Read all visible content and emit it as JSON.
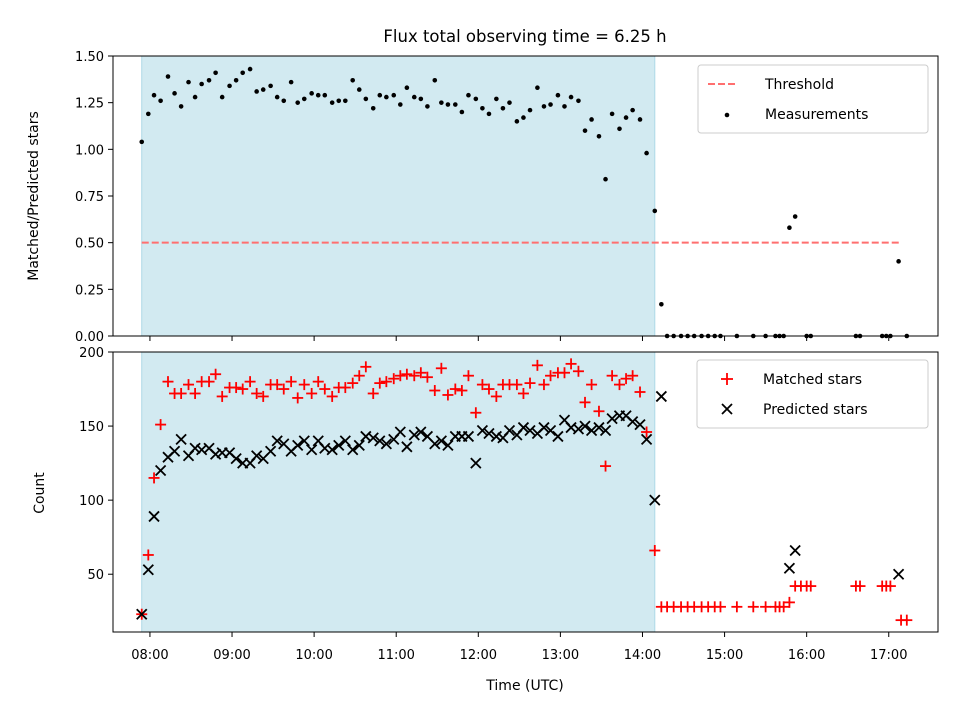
{
  "chart_data": {
    "type": "scatter",
    "title": "Flux total observing time = 6.25 h",
    "xlabel": "Time (UTC)",
    "x_ticks": [
      "08:00",
      "09:00",
      "10:00",
      "11:00",
      "12:00",
      "13:00",
      "14:00",
      "15:00",
      "16:00",
      "17:00"
    ],
    "x_range_hours": [
      7.55,
      17.6
    ],
    "observing_window_hours": [
      7.9,
      14.15
    ],
    "colors": {
      "window": "#add8e6",
      "threshold": "#ff6f6f",
      "matched": "#ff0000",
      "predicted": "#000000"
    },
    "top": {
      "ylabel": "Matched/Predicted stars",
      "ylim": [
        0,
        1.5
      ],
      "yticks": [
        "0.00",
        "0.25",
        "0.50",
        "0.75",
        "1.00",
        "1.25",
        "1.50"
      ],
      "threshold": 0.5,
      "legend": [
        "Threshold",
        "Measurements"
      ],
      "legend_loc": "upper right",
      "measurements": [
        [
          7.9,
          1.04
        ],
        [
          7.98,
          1.19
        ],
        [
          8.05,
          1.29
        ],
        [
          8.13,
          1.26
        ],
        [
          8.22,
          1.39
        ],
        [
          8.3,
          1.3
        ],
        [
          8.38,
          1.23
        ],
        [
          8.47,
          1.36
        ],
        [
          8.55,
          1.28
        ],
        [
          8.63,
          1.35
        ],
        [
          8.72,
          1.37
        ],
        [
          8.8,
          1.41
        ],
        [
          8.88,
          1.28
        ],
        [
          8.97,
          1.34
        ],
        [
          9.05,
          1.37
        ],
        [
          9.13,
          1.41
        ],
        [
          9.22,
          1.43
        ],
        [
          9.3,
          1.31
        ],
        [
          9.38,
          1.32
        ],
        [
          9.47,
          1.34
        ],
        [
          9.55,
          1.28
        ],
        [
          9.63,
          1.26
        ],
        [
          9.72,
          1.36
        ],
        [
          9.8,
          1.25
        ],
        [
          9.88,
          1.27
        ],
        [
          9.97,
          1.3
        ],
        [
          10.05,
          1.29
        ],
        [
          10.13,
          1.29
        ],
        [
          10.22,
          1.25
        ],
        [
          10.3,
          1.26
        ],
        [
          10.38,
          1.26
        ],
        [
          10.47,
          1.37
        ],
        [
          10.55,
          1.32
        ],
        [
          10.63,
          1.27
        ],
        [
          10.72,
          1.22
        ],
        [
          10.8,
          1.29
        ],
        [
          10.88,
          1.28
        ],
        [
          10.97,
          1.29
        ],
        [
          11.05,
          1.24
        ],
        [
          11.13,
          1.33
        ],
        [
          11.22,
          1.28
        ],
        [
          11.3,
          1.27
        ],
        [
          11.38,
          1.23
        ],
        [
          11.47,
          1.37
        ],
        [
          11.55,
          1.25
        ],
        [
          11.63,
          1.24
        ],
        [
          11.72,
          1.24
        ],
        [
          11.8,
          1.2
        ],
        [
          11.88,
          1.29
        ],
        [
          11.97,
          1.27
        ],
        [
          12.05,
          1.22
        ],
        [
          12.13,
          1.19
        ],
        [
          12.22,
          1.27
        ],
        [
          12.3,
          1.22
        ],
        [
          12.38,
          1.25
        ],
        [
          12.47,
          1.15
        ],
        [
          12.55,
          1.17
        ],
        [
          12.63,
          1.21
        ],
        [
          12.72,
          1.33
        ],
        [
          12.8,
          1.23
        ],
        [
          12.88,
          1.24
        ],
        [
          12.97,
          1.29
        ],
        [
          13.05,
          1.23
        ],
        [
          13.13,
          1.28
        ],
        [
          13.22,
          1.26
        ],
        [
          13.3,
          1.1
        ],
        [
          13.38,
          1.16
        ],
        [
          13.47,
          1.07
        ],
        [
          13.55,
          0.84
        ],
        [
          13.63,
          1.19
        ],
        [
          13.72,
          1.11
        ],
        [
          13.8,
          1.17
        ],
        [
          13.88,
          1.21
        ],
        [
          13.97,
          1.16
        ],
        [
          14.05,
          0.98
        ],
        [
          14.15,
          0.67
        ],
        [
          14.23,
          0.17
        ],
        [
          14.3,
          0
        ],
        [
          14.38,
          0
        ],
        [
          14.47,
          0
        ],
        [
          14.55,
          0
        ],
        [
          14.63,
          0
        ],
        [
          14.72,
          0
        ],
        [
          14.8,
          0
        ],
        [
          14.88,
          0
        ],
        [
          14.95,
          0
        ],
        [
          15.15,
          0
        ],
        [
          15.35,
          0
        ],
        [
          15.5,
          0
        ],
        [
          15.62,
          0
        ],
        [
          15.67,
          0
        ],
        [
          15.72,
          0
        ],
        [
          15.79,
          0.58
        ],
        [
          15.86,
          0.64
        ],
        [
          16.0,
          0
        ],
        [
          16.05,
          0
        ],
        [
          16.6,
          0
        ],
        [
          16.65,
          0
        ],
        [
          16.92,
          0
        ],
        [
          16.97,
          0
        ],
        [
          17.02,
          0
        ],
        [
          17.12,
          0.4
        ],
        [
          17.22,
          0
        ]
      ]
    },
    "bottom": {
      "ylabel": "Count",
      "ylim": [
        11,
        200
      ],
      "yticks": [
        "50",
        "100",
        "150",
        "200"
      ],
      "legend": [
        "Matched stars",
        "Predicted stars"
      ],
      "legend_loc": "upper right",
      "matched": [
        [
          7.9,
          23
        ],
        [
          7.98,
          63
        ],
        [
          8.05,
          115
        ],
        [
          8.13,
          151
        ],
        [
          8.22,
          180
        ],
        [
          8.3,
          172
        ],
        [
          8.38,
          172
        ],
        [
          8.47,
          178
        ],
        [
          8.55,
          172
        ],
        [
          8.63,
          180
        ],
        [
          8.72,
          180
        ],
        [
          8.8,
          185
        ],
        [
          8.88,
          170
        ],
        [
          8.97,
          176
        ],
        [
          9.05,
          176
        ],
        [
          9.13,
          175
        ],
        [
          9.22,
          180
        ],
        [
          9.3,
          172
        ],
        [
          9.38,
          170
        ],
        [
          9.47,
          178
        ],
        [
          9.55,
          178
        ],
        [
          9.63,
          175
        ],
        [
          9.72,
          180
        ],
        [
          9.8,
          169
        ],
        [
          9.88,
          178
        ],
        [
          9.97,
          172
        ],
        [
          10.05,
          180
        ],
        [
          10.13,
          175
        ],
        [
          10.22,
          170
        ],
        [
          10.3,
          176
        ],
        [
          10.38,
          176
        ],
        [
          10.47,
          179
        ],
        [
          10.55,
          184
        ],
        [
          10.63,
          190
        ],
        [
          10.72,
          172
        ],
        [
          10.8,
          179
        ],
        [
          10.88,
          180
        ],
        [
          10.97,
          182
        ],
        [
          11.05,
          184
        ],
        [
          11.13,
          185
        ],
        [
          11.22,
          184
        ],
        [
          11.3,
          186
        ],
        [
          11.38,
          183
        ],
        [
          11.47,
          174
        ],
        [
          11.55,
          189
        ],
        [
          11.63,
          171
        ],
        [
          11.72,
          175
        ],
        [
          11.8,
          174
        ],
        [
          11.88,
          184
        ],
        [
          11.97,
          159
        ],
        [
          12.05,
          178
        ],
        [
          12.13,
          175
        ],
        [
          12.22,
          170
        ],
        [
          12.3,
          178
        ],
        [
          12.38,
          178
        ],
        [
          12.47,
          178
        ],
        [
          12.55,
          172
        ],
        [
          12.63,
          179
        ],
        [
          12.72,
          191
        ],
        [
          12.8,
          178
        ],
        [
          12.88,
          184
        ],
        [
          12.97,
          186
        ],
        [
          13.05,
          186
        ],
        [
          13.13,
          192
        ],
        [
          13.22,
          187
        ],
        [
          13.3,
          166
        ],
        [
          13.38,
          178
        ],
        [
          13.47,
          160
        ],
        [
          13.55,
          123
        ],
        [
          13.63,
          184
        ],
        [
          13.72,
          178
        ],
        [
          13.8,
          182
        ],
        [
          13.88,
          184
        ],
        [
          13.97,
          173
        ],
        [
          14.05,
          146
        ],
        [
          14.15,
          66
        ],
        [
          14.23,
          28
        ],
        [
          14.3,
          28
        ],
        [
          14.38,
          28
        ],
        [
          14.47,
          28
        ],
        [
          14.55,
          28
        ],
        [
          14.63,
          28
        ],
        [
          14.72,
          28
        ],
        [
          14.8,
          28
        ],
        [
          14.88,
          28
        ],
        [
          14.95,
          28
        ],
        [
          15.15,
          28
        ],
        [
          15.35,
          28
        ],
        [
          15.5,
          28
        ],
        [
          15.62,
          28
        ],
        [
          15.67,
          28
        ],
        [
          15.72,
          28
        ],
        [
          15.79,
          31
        ],
        [
          15.86,
          42
        ],
        [
          15.93,
          42
        ],
        [
          16.0,
          42
        ],
        [
          16.05,
          42
        ],
        [
          16.6,
          42
        ],
        [
          16.65,
          42
        ],
        [
          16.92,
          42
        ],
        [
          16.97,
          42
        ],
        [
          17.02,
          42
        ],
        [
          17.15,
          19
        ],
        [
          17.22,
          19
        ]
      ],
      "predicted": [
        [
          7.9,
          23
        ],
        [
          7.98,
          53
        ],
        [
          8.05,
          89
        ],
        [
          8.13,
          120
        ],
        [
          8.22,
          129
        ],
        [
          8.3,
          133
        ],
        [
          8.38,
          141
        ],
        [
          8.47,
          130
        ],
        [
          8.55,
          135
        ],
        [
          8.63,
          134
        ],
        [
          8.72,
          135
        ],
        [
          8.8,
          131
        ],
        [
          8.88,
          132
        ],
        [
          8.97,
          132
        ],
        [
          9.05,
          128
        ],
        [
          9.13,
          125
        ],
        [
          9.22,
          125
        ],
        [
          9.3,
          130
        ],
        [
          9.38,
          128
        ],
        [
          9.47,
          133
        ],
        [
          9.55,
          140
        ],
        [
          9.63,
          138
        ],
        [
          9.72,
          133
        ],
        [
          9.8,
          137
        ],
        [
          9.88,
          140
        ],
        [
          9.97,
          134
        ],
        [
          10.05,
          140
        ],
        [
          10.13,
          135
        ],
        [
          10.22,
          134
        ],
        [
          10.3,
          137
        ],
        [
          10.38,
          140
        ],
        [
          10.47,
          134
        ],
        [
          10.55,
          137
        ],
        [
          10.63,
          143
        ],
        [
          10.72,
          142
        ],
        [
          10.8,
          140
        ],
        [
          10.88,
          138
        ],
        [
          10.97,
          141
        ],
        [
          11.05,
          146
        ],
        [
          11.13,
          136
        ],
        [
          11.22,
          144
        ],
        [
          11.3,
          146
        ],
        [
          11.38,
          143
        ],
        [
          11.47,
          138
        ],
        [
          11.55,
          140
        ],
        [
          11.63,
          137
        ],
        [
          11.72,
          143
        ],
        [
          11.8,
          143
        ],
        [
          11.88,
          143
        ],
        [
          11.97,
          125
        ],
        [
          12.05,
          147
        ],
        [
          12.13,
          145
        ],
        [
          12.22,
          143
        ],
        [
          12.3,
          142
        ],
        [
          12.38,
          147
        ],
        [
          12.47,
          144
        ],
        [
          12.55,
          149
        ],
        [
          12.63,
          147
        ],
        [
          12.72,
          145
        ],
        [
          12.8,
          149
        ],
        [
          12.88,
          147
        ],
        [
          12.97,
          143
        ],
        [
          13.05,
          154
        ],
        [
          13.13,
          149
        ],
        [
          13.22,
          148
        ],
        [
          13.3,
          150
        ],
        [
          13.38,
          147
        ],
        [
          13.47,
          149
        ],
        [
          13.55,
          147
        ],
        [
          13.63,
          155
        ],
        [
          13.72,
          157
        ],
        [
          13.8,
          157
        ],
        [
          13.88,
          153
        ],
        [
          13.97,
          151
        ],
        [
          14.05,
          141
        ],
        [
          14.15,
          100
        ],
        [
          14.23,
          170
        ],
        [
          15.79,
          54
        ],
        [
          15.86,
          66
        ],
        [
          17.12,
          50
        ]
      ]
    }
  }
}
